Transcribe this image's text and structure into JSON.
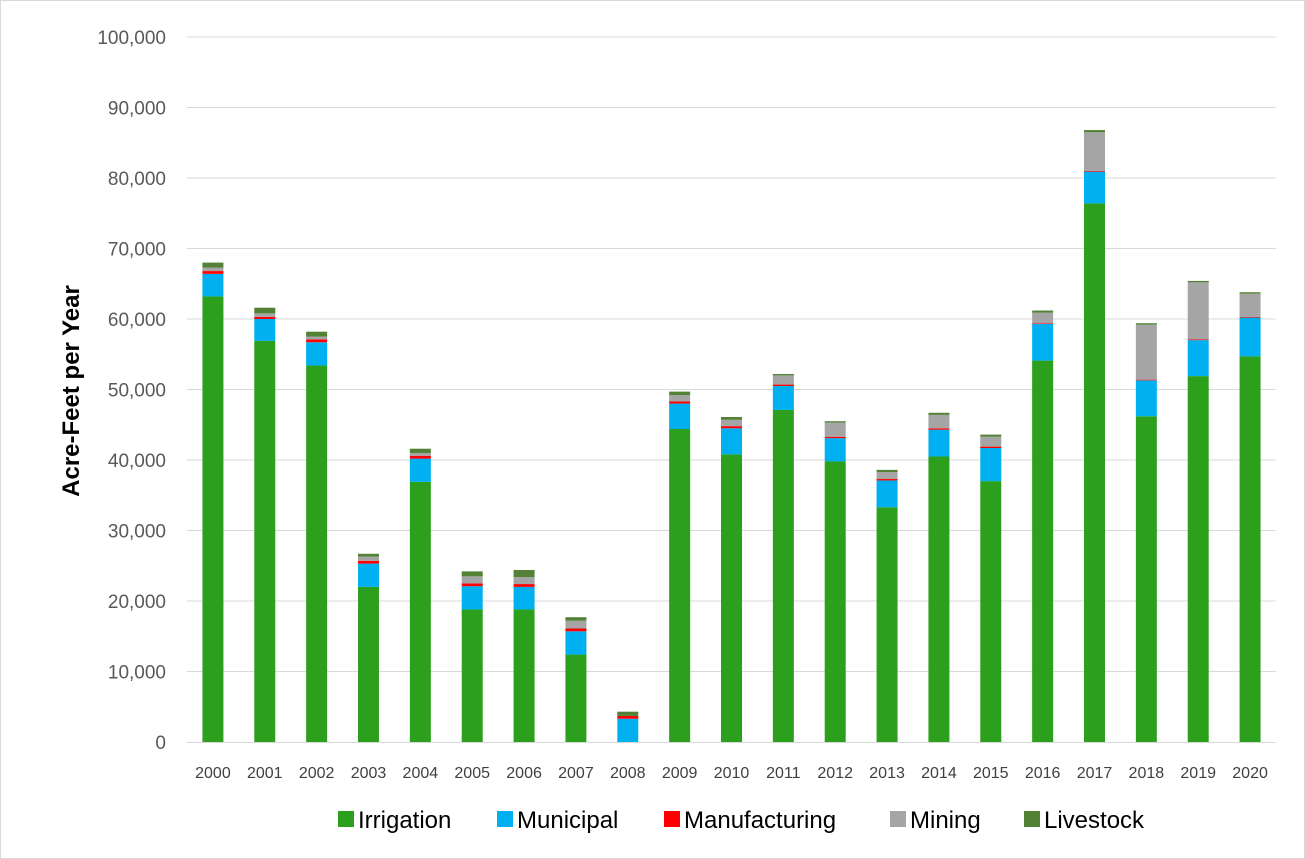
{
  "chart_data": {
    "type": "bar",
    "stacked": true,
    "title": "",
    "xlabel": "",
    "ylabel": "Acre-Feet per Year",
    "ylim": [
      0,
      100000
    ],
    "yticks": [
      0,
      10000,
      20000,
      30000,
      40000,
      50000,
      60000,
      70000,
      80000,
      90000,
      100000
    ],
    "ytick_labels": [
      "0",
      "10,000",
      "20,000",
      "30,000",
      "40,000",
      "50,000",
      "60,000",
      "70,000",
      "80,000",
      "90,000",
      "100,000"
    ],
    "grid": true,
    "legend_position": "bottom",
    "categories": [
      "2000",
      "2001",
      "2002",
      "2003",
      "2004",
      "2005",
      "2006",
      "2007",
      "2008",
      "2009",
      "2010",
      "2011",
      "2012",
      "2013",
      "2014",
      "2015",
      "2016",
      "2017",
      "2018",
      "2019",
      "2020"
    ],
    "series": [
      {
        "name": "Irrigation",
        "color": "#2ca01c",
        "values": [
          63200,
          56900,
          53400,
          22000,
          36900,
          18800,
          18800,
          12400,
          0,
          44400,
          40800,
          47100,
          39800,
          33300,
          40500,
          37000,
          54100,
          76400,
          46200,
          51900,
          54700
        ]
      },
      {
        "name": "Municipal",
        "color": "#00b0f0",
        "values": [
          3200,
          3100,
          3300,
          3300,
          3300,
          3300,
          3200,
          3300,
          3300,
          3600,
          3700,
          3400,
          3300,
          3800,
          3800,
          4700,
          5200,
          4500,
          5100,
          5100,
          5500
        ]
      },
      {
        "name": "Manufacturing",
        "color": "#ff0000",
        "values": [
          400,
          300,
          400,
          400,
          400,
          400,
          400,
          400,
          400,
          300,
          300,
          200,
          200,
          200,
          200,
          200,
          100,
          100,
          100,
          100,
          100
        ]
      },
      {
        "name": "Mining",
        "color": "#a5a5a5",
        "values": [
          500,
          500,
          400,
          600,
          400,
          1000,
          1000,
          1100,
          0,
          900,
          900,
          1300,
          2000,
          1000,
          1900,
          1400,
          1500,
          5500,
          7800,
          8100,
          3300
        ]
      },
      {
        "name": "Livestock",
        "color": "#538135",
        "values": [
          700,
          800,
          700,
          400,
          600,
          700,
          1000,
          500,
          600,
          500,
          400,
          200,
          200,
          300,
          300,
          300,
          300,
          300,
          200,
          200,
          200
        ]
      }
    ]
  }
}
